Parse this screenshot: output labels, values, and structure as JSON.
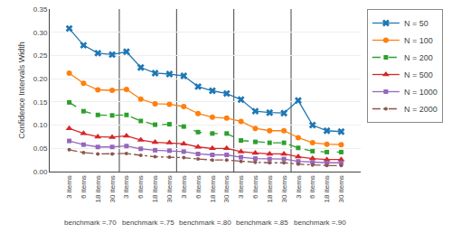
{
  "chart_data": {
    "type": "line",
    "y_label": "Confidence Intervals Width",
    "categories": [
      "3 items",
      "6 items",
      "18 items",
      "30 items",
      "3 items",
      "6 items",
      "18 items",
      "30 items",
      "3 items",
      "6 items",
      "18 items",
      "30 items",
      "3 items",
      "6 items",
      "18 items",
      "30 items",
      "3 items",
      "6 items",
      "18 items",
      "30 items"
    ],
    "annotations": [
      "benchmark =.70",
      "benchmark =.75",
      "benchmark =.80",
      "benchmark =.85",
      "benchmark =.90"
    ],
    "series": [
      {
        "name": "N = 50",
        "marker": "x",
        "line_style": "solid",
        "values": [
          0.308,
          0.272,
          0.255,
          0.252,
          0.258,
          0.224,
          0.212,
          0.21,
          0.206,
          0.183,
          0.174,
          0.168,
          0.155,
          0.13,
          0.127,
          0.126,
          0.153,
          0.1,
          0.088,
          0.086
        ]
      },
      {
        "name": "N = 100",
        "marker": "circle",
        "line_style": "solid",
        "values": [
          0.212,
          0.19,
          0.176,
          0.175,
          0.177,
          0.156,
          0.146,
          0.145,
          0.14,
          0.125,
          0.117,
          0.115,
          0.108,
          0.093,
          0.088,
          0.088,
          0.073,
          0.062,
          0.059,
          0.058
        ]
      },
      {
        "name": "N = 200",
        "marker": "square",
        "line_style": "dashed",
        "values": [
          0.149,
          0.13,
          0.122,
          0.121,
          0.122,
          0.109,
          0.101,
          0.102,
          0.097,
          0.085,
          0.082,
          0.082,
          0.067,
          0.064,
          0.062,
          0.062,
          0.051,
          0.044,
          0.042,
          0.042
        ]
      },
      {
        "name": "N = 500",
        "marker": "triangle-up",
        "line_style": "solid",
        "values": [
          0.093,
          0.082,
          0.075,
          0.074,
          0.077,
          0.068,
          0.063,
          0.062,
          0.06,
          0.053,
          0.05,
          0.05,
          0.043,
          0.04,
          0.038,
          0.038,
          0.032,
          0.028,
          0.026,
          0.026
        ]
      },
      {
        "name": "N = 1000",
        "marker": "square",
        "line_style": "solid",
        "values": [
          0.066,
          0.058,
          0.053,
          0.053,
          0.055,
          0.049,
          0.046,
          0.045,
          0.043,
          0.038,
          0.036,
          0.036,
          0.031,
          0.028,
          0.027,
          0.027,
          0.022,
          0.02,
          0.019,
          0.019
        ]
      },
      {
        "name": "N = 2000",
        "marker": "point",
        "line_style": "dashdot",
        "values": [
          0.047,
          0.041,
          0.038,
          0.038,
          0.039,
          0.035,
          0.032,
          0.031,
          0.03,
          0.027,
          0.025,
          0.025,
          0.022,
          0.02,
          0.019,
          0.019,
          0.016,
          0.014,
          0.013,
          0.013
        ]
      }
    ],
    "ylim": [
      0.0,
      0.35
    ],
    "yticks": [
      {
        "value": 0.0,
        "label": "0.00"
      },
      0.05,
      {
        "value": 0.1,
        "label": "0.10"
      },
      0.15,
      {
        "value": 0.2,
        "label": "0.20"
      },
      0.25,
      {
        "value": 0.3,
        "label": "0.30"
      },
      0.35
    ],
    "grid": true,
    "legend": "right"
  }
}
